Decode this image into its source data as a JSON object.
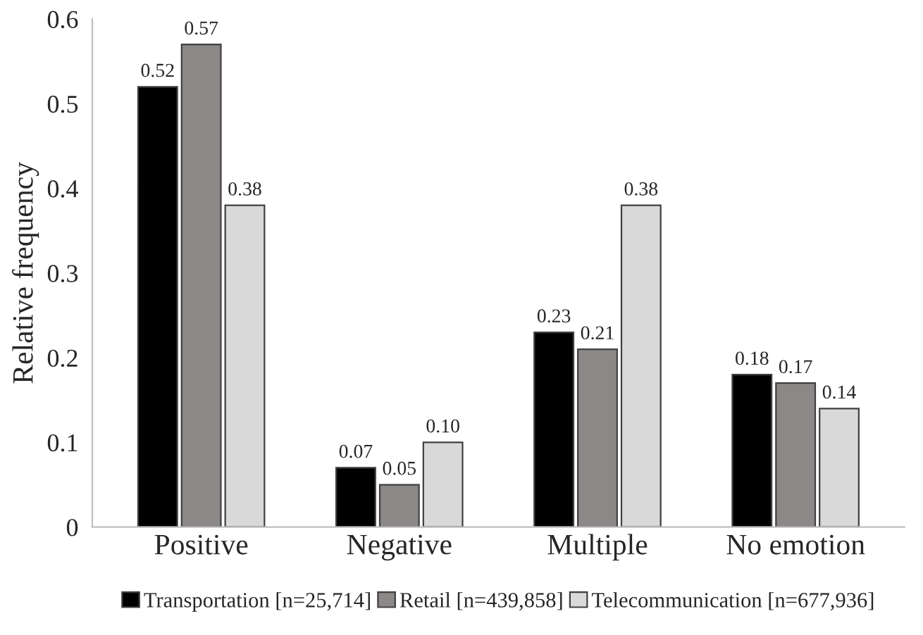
{
  "chart_data": {
    "type": "bar",
    "ylabel": "Relative frequency",
    "categories": [
      "Positive",
      "Negative",
      "Multiple",
      "No emotion"
    ],
    "series": [
      {
        "name": "Transportation [n=25,714]",
        "color": "#000000",
        "values": [
          0.52,
          0.07,
          0.23,
          0.18
        ],
        "value_labels": [
          "0.52",
          "0.07",
          "0.23",
          "0.18"
        ]
      },
      {
        "name": "Retail [n=439,858]",
        "color": "#8c8888",
        "values": [
          0.57,
          0.05,
          0.21,
          0.17
        ],
        "value_labels": [
          "0.57",
          "0.05",
          "0.21",
          "0.17"
        ]
      },
      {
        "name": "Telecommunication [n=677,936]",
        "color": "#d9d9d9",
        "values": [
          0.38,
          0.1,
          0.38,
          0.14
        ],
        "value_labels": [
          "0.38",
          "0.10",
          "0.38",
          "0.14"
        ]
      }
    ],
    "ylim": [
      0,
      0.6
    ],
    "yticks": [
      0,
      0.1,
      0.2,
      0.3,
      0.4,
      0.5,
      0.6
    ],
    "legend": "bottom"
  }
}
